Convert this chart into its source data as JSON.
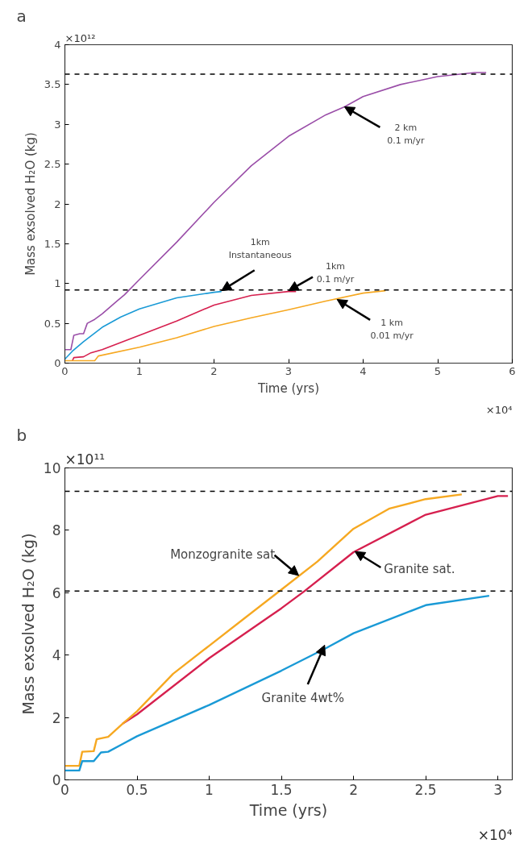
{
  "chart_data": [
    {
      "type": "line",
      "title": "a",
      "xlabel": "Time (yrs)",
      "ylabel": "Mass exsolved H₂O (kg)",
      "xlim": [
        0,
        6
      ],
      "xticks": [
        0,
        1,
        2,
        3,
        4,
        5,
        6
      ],
      "ylim": [
        0,
        4
      ],
      "yticks": [
        0,
        0.5,
        1,
        1.5,
        2,
        2.5,
        3,
        3.5,
        4
      ],
      "grid": false,
      "series": [
        {
          "color": "#9a4ea8",
          "x": [
            0,
            0.08,
            0.12,
            0.2,
            0.25,
            0.3,
            0.4,
            0.5,
            0.6,
            0.7,
            0.8,
            1,
            1.5,
            2,
            2.5,
            3,
            3.5,
            3.75,
            4,
            4.5,
            5,
            5.5,
            5.65
          ],
          "values": [
            0.17,
            0.17,
            0.35,
            0.37,
            0.37,
            0.5,
            0.55,
            0.62,
            0.7,
            0.78,
            0.86,
            1.05,
            1.52,
            2.02,
            2.48,
            2.85,
            3.12,
            3.22,
            3.35,
            3.5,
            3.6,
            3.65,
            3.65
          ]
        },
        {
          "color": "#1a9ad6",
          "x": [
            0,
            0.1,
            0.25,
            0.5,
            0.75,
            1,
            1.5,
            2,
            2.1
          ],
          "values": [
            0.05,
            0.15,
            0.27,
            0.45,
            0.58,
            0.68,
            0.82,
            0.89,
            0.9
          ]
        },
        {
          "color": "#d6204f",
          "x": [
            0.1,
            0.12,
            0.25,
            0.35,
            0.5,
            1,
            1.5,
            2,
            2.5,
            3,
            3.1
          ],
          "values": [
            0.03,
            0.07,
            0.08,
            0.13,
            0.17,
            0.35,
            0.53,
            0.73,
            0.85,
            0.9,
            0.9
          ]
        },
        {
          "color": "#f6a821",
          "x": [
            0,
            0.4,
            0.45,
            1,
            1.5,
            2,
            2.5,
            3,
            3.5,
            4,
            4.3
          ],
          "values": [
            0.03,
            0.03,
            0.09,
            0.2,
            0.32,
            0.46,
            0.57,
            0.67,
            0.78,
            0.88,
            0.91
          ]
        }
      ],
      "ref_lines": [
        {
          "axis": "y",
          "value": 3.63,
          "color": "#000000",
          "line_style": "dashed"
        },
        {
          "axis": "y",
          "value": 0.92,
          "color": "#000000",
          "line_style": "dashed"
        }
      ],
      "annotations": [
        "×10¹²",
        "×10⁴",
        {
          "text": "2 km\n0.1 m/yr",
          "x": 3.75,
          "y": 3.22
        },
        {
          "text": "1km\nInstantaneous",
          "x": 2.1,
          "y": 0.91
        },
        {
          "text": "1km\n0.1 m/yr",
          "x": 3.0,
          "y": 0.91
        },
        {
          "text": "1 km\n0.01 m/yr",
          "x": 3.65,
          "y": 0.8
        }
      ]
    },
    {
      "type": "line",
      "title": "b",
      "xlabel": "Time (yrs)",
      "ylabel": "Mass exsolved H₂O (kg)",
      "xlim": [
        0,
        3.1
      ],
      "xticks": [
        0,
        0.5,
        1,
        1.5,
        2,
        2.5,
        3
      ],
      "ylim": [
        0,
        10
      ],
      "yticks": [
        0,
        2,
        4,
        6,
        8,
        10
      ],
      "grid": false,
      "series": [
        {
          "color": "#d6204f",
          "x": [
            0.4,
            0.5,
            1,
            1.5,
            1.66,
            2,
            2.5,
            3,
            3.07
          ],
          "values": [
            1.8,
            2.1,
            3.9,
            5.5,
            6.05,
            7.3,
            8.5,
            9.1,
            9.1
          ]
        },
        {
          "color": "#f6a821",
          "x": [
            0,
            0.1,
            0.12,
            0.2,
            0.22,
            0.3,
            0.4,
            0.5,
            0.75,
            1,
            1.25,
            1.5,
            1.75,
            2,
            2.25,
            2.5,
            2.75
          ],
          "values": [
            0.45,
            0.45,
            0.9,
            0.92,
            1.3,
            1.38,
            1.8,
            2.2,
            3.4,
            4.3,
            5.2,
            6.1,
            7.0,
            8.05,
            8.7,
            9.0,
            9.15
          ]
        },
        {
          "color": "#1a9ad6",
          "x": [
            0,
            0.1,
            0.12,
            0.2,
            0.25,
            0.3,
            0.4,
            0.5,
            1,
            1.5,
            1.8,
            2,
            2.5,
            2.94
          ],
          "values": [
            0.3,
            0.3,
            0.6,
            0.6,
            0.88,
            0.9,
            1.15,
            1.4,
            2.4,
            3.5,
            4.2,
            4.7,
            5.6,
            5.9
          ]
        }
      ],
      "ref_lines": [
        {
          "axis": "y",
          "value": 9.25,
          "color": "#000000",
          "line_style": "dashed"
        },
        {
          "axis": "y",
          "value": 6.05,
          "color": "#000000",
          "line_style": "dashed"
        }
      ],
      "annotations": [
        "×10¹¹",
        "×10⁴",
        {
          "text": "Monzogranite sat.",
          "x": 1.62,
          "y": 6.55
        },
        {
          "text": "Granite sat.",
          "x": 2.01,
          "y": 7.32
        },
        {
          "text": "Granite 4wt%",
          "x": 1.8,
          "y": 4.32
        }
      ]
    }
  ]
}
